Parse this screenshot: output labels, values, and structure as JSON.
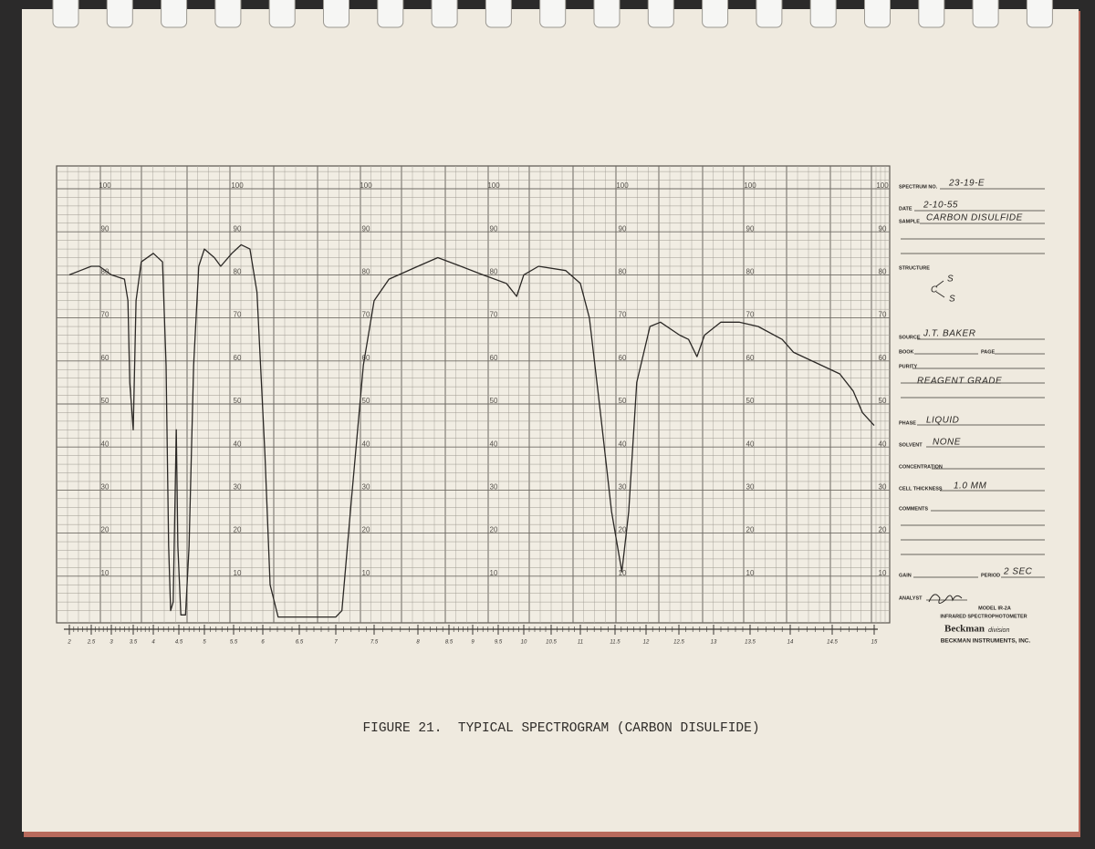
{
  "chart_data": {
    "type": "line",
    "caption": "FIGURE 21.  TYPICAL SPECTROGRAM (CARBON DISULFIDE)",
    "x": [
      2.0,
      2.25,
      2.5,
      2.7,
      3.0,
      3.3,
      3.38,
      3.42,
      3.5,
      3.57,
      3.7,
      4.0,
      4.18,
      4.25,
      4.3,
      4.34,
      4.39,
      4.45,
      4.48,
      4.54,
      4.63,
      4.7,
      4.79,
      4.89,
      5.0,
      5.17,
      5.28,
      5.47,
      5.63,
      5.78,
      5.9,
      6.03,
      6.1,
      6.21,
      7.0,
      7.08,
      7.2,
      7.36,
      7.5,
      7.67,
      8.0,
      8.32,
      8.75,
      9.2,
      9.66,
      9.86,
      10.0,
      10.27,
      10.75,
      11.0,
      11.13,
      11.29,
      11.45,
      11.61,
      11.72,
      11.85,
      12.06,
      12.22,
      12.51,
      12.64,
      12.76,
      12.87,
      13.1,
      13.35,
      13.6,
      13.9,
      14.04,
      14.37,
      14.59,
      14.75,
      14.86,
      15.0
    ],
    "values": [
      80,
      81,
      82,
      82,
      80,
      79,
      74,
      55,
      44,
      74,
      83,
      85,
      83,
      59,
      17,
      2,
      4,
      44,
      17,
      1,
      1,
      17,
      59,
      82,
      86,
      84,
      82,
      85,
      87,
      86,
      76,
      38,
      8,
      0.5,
      0.5,
      2,
      27,
      59,
      74,
      79,
      82,
      84,
      82,
      80,
      78,
      75,
      80,
      82,
      81,
      78,
      70,
      48,
      25,
      11,
      25,
      55,
      68,
      69,
      66,
      65,
      61,
      66,
      69,
      69,
      68,
      65,
      62,
      59,
      57,
      53,
      48,
      45
    ],
    "color": "#2b2825",
    "xlim": [
      2,
      15
    ],
    "xticks": [
      2,
      2.5,
      3,
      3.5,
      4,
      4.5,
      5,
      5.5,
      6,
      6.5,
      7,
      7.5,
      8,
      8.5,
      9,
      9.5,
      10,
      10.5,
      11,
      11.5,
      12,
      12.5,
      13,
      13.5,
      14,
      14.5,
      15
    ],
    "ylim": [
      0,
      100
    ],
    "yticks": [
      10,
      20,
      30,
      40,
      50,
      60,
      70,
      80,
      90,
      100
    ],
    "minor_yticks": [
      2,
      4,
      6,
      8,
      12,
      14,
      16,
      18,
      22,
      24,
      26,
      28,
      32,
      34,
      36,
      38,
      42,
      44,
      46,
      48,
      52,
      54,
      56,
      58,
      62,
      64,
      66,
      68,
      72,
      74,
      76,
      78,
      82,
      84,
      86,
      88,
      92,
      94,
      96,
      98,
      102,
      104
    ],
    "grid": true
  },
  "form": {
    "fields": [
      {
        "label": "SPECTRUM NO.",
        "value": "23-19-E"
      },
      {
        "label": "DATE",
        "value": "2-10-55"
      },
      {
        "label": "SAMPLE",
        "value": "CARBON DISULFIDE"
      },
      {
        "label": "STRUCTURE"
      },
      {
        "label": "SOURCE",
        "value": "J.T. BAKER"
      },
      {
        "label": "BOOK"
      },
      {
        "label": "PAGE"
      },
      {
        "label": "PURITY",
        "value": "REAGENT GRADE"
      },
      {
        "label": "PHASE",
        "value": "LIQUID"
      },
      {
        "label": "SOLVENT",
        "value": "NONE"
      },
      {
        "label": "CONCENTRATION"
      },
      {
        "label": "CELL THICKNESS",
        "value": "1.0 MM"
      },
      {
        "label": "COMMENTS"
      },
      {
        "label": "GAIN"
      },
      {
        "label": "PERIOD",
        "value": "2 SEC"
      },
      {
        "label": "ANALYST"
      }
    ],
    "structure_atoms": [
      "C",
      "S",
      "S"
    ],
    "model": "MODEL IR-2A",
    "instrument": "INFRARED SPECTROPHOTOMETER",
    "brand": "Beckman",
    "brand_note": "division",
    "company": "BECKMAN INSTRUMENTS, INC."
  }
}
